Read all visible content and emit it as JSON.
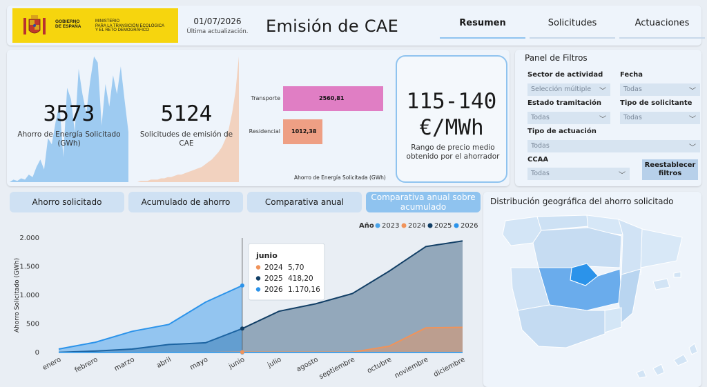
{
  "header": {
    "logo_gobierno": "GOBIERNO\nDE ESPAÑA",
    "logo_ministerio": "MINISTERIO\nPARA LA TRANSICIÓN ECOLÓGICA\nY EL RETO DEMOGRÁFICO",
    "date": "01/07/2026",
    "date_label": "Última actualización.",
    "title": "Emisión de CAE",
    "tabs": [
      {
        "label": "Resumen",
        "active": true
      },
      {
        "label": "Solicitudes",
        "active": false
      },
      {
        "label": "Actuaciones",
        "active": false
      }
    ]
  },
  "kpis": {
    "ahorro": {
      "value": "3573",
      "label": "Ahorro de Energía Solicitado (GWh)",
      "color": "#8fc3ef",
      "spark": [
        0,
        2,
        1,
        3,
        2,
        6,
        4,
        12,
        18,
        10,
        35,
        30,
        48,
        62,
        20,
        75,
        66,
        40,
        90,
        70,
        55,
        80,
        100,
        95,
        45,
        78,
        60,
        85,
        70,
        92,
        65,
        40
      ]
    },
    "solicitudes": {
      "value": "5124",
      "label": "Solicitudes de emisión de CAE",
      "color": "#f2cbb4",
      "spark": [
        0,
        0,
        1,
        1,
        1,
        2,
        2,
        2,
        3,
        3,
        4,
        4,
        5,
        6,
        6,
        7,
        8,
        9,
        10,
        11,
        12,
        14,
        16,
        18,
        21,
        24,
        28,
        34,
        42,
        55,
        72,
        100
      ]
    }
  },
  "sector_bars": {
    "xlabel": "Ahorro de Energía Solicitada (GWh)",
    "items": [
      {
        "category": "Transporte",
        "value": 2560.81,
        "display": "2560,81",
        "color": "#e07ec4"
      },
      {
        "category": "Residencial",
        "value": 1012.38,
        "display": "1012,38",
        "color": "#ee9f84"
      }
    ]
  },
  "price": {
    "value_line1": "115-140",
    "value_line2": "€/MWh",
    "label": "Rango de precio medio obtenido por el ahorrador"
  },
  "filters": {
    "title": "Panel de Filtros",
    "sector": {
      "label": "Sector de actividad",
      "value": "Selección múltiple"
    },
    "fecha": {
      "label": "Fecha",
      "value": "Todas"
    },
    "estado": {
      "label": "Estado tramitación",
      "value": "Todas"
    },
    "tipo_solicitante": {
      "label": "Tipo de solicitante",
      "value": "Todas"
    },
    "tipo_actuacion": {
      "label": "Tipo de actuación",
      "value": "Todas"
    },
    "ccaa": {
      "label": "CCAA",
      "value": "Todas"
    },
    "reset": "Reestablecer filtros"
  },
  "view_buttons": [
    "Ahorro solicitado",
    "Acumulado de ahorro",
    "Comparativa anual",
    "Comparativa anual sobre acumulado"
  ],
  "map": {
    "title": "Distribución geográfica del ahorro solicitado"
  },
  "chart_data": {
    "type": "area",
    "ylabel": "Ahorro Solicitado (GWh)",
    "ylim": [
      0,
      2000
    ],
    "yticks": [
      0,
      500,
      1000,
      1500,
      2000
    ],
    "ytick_labels": [
      "0",
      "500",
      "1.000",
      "1.500",
      "2.000"
    ],
    "legend_title": "Año",
    "legend_position": "top-right",
    "categories": [
      "enero",
      "febrero",
      "marzo",
      "abril",
      "mayo",
      "junio",
      "julio",
      "agosto",
      "septiembre",
      "octubre",
      "noviembre",
      "diciembre"
    ],
    "series": [
      {
        "name": "2023",
        "color": "#4aa3e8",
        "values": [
          0,
          0,
          0,
          0,
          0,
          0,
          0,
          0,
          0,
          0,
          0,
          0
        ]
      },
      {
        "name": "2024",
        "color": "#f0935a",
        "values": [
          0,
          0,
          0,
          0,
          0,
          5.7,
          5.7,
          5.7,
          5.7,
          110,
          430,
          440
        ]
      },
      {
        "name": "2025",
        "color": "#123f66",
        "values": [
          2,
          25,
          60,
          140,
          170,
          418.2,
          720,
          850,
          1030,
          1420,
          1850,
          1950
        ]
      },
      {
        "name": "2026",
        "color": "#2b93ea",
        "values": [
          60,
          180,
          370,
          490,
          880,
          1170.16,
          null,
          null,
          null,
          null,
          null,
          null
        ]
      }
    ],
    "tooltip": {
      "title": "junio",
      "rows": [
        {
          "year": "2024",
          "value": "5,70",
          "color": "#f0935a"
        },
        {
          "year": "2025",
          "value": "418,20",
          "color": "#123f66"
        },
        {
          "year": "2026",
          "value": "1.170,16",
          "color": "#2b93ea"
        }
      ]
    }
  }
}
